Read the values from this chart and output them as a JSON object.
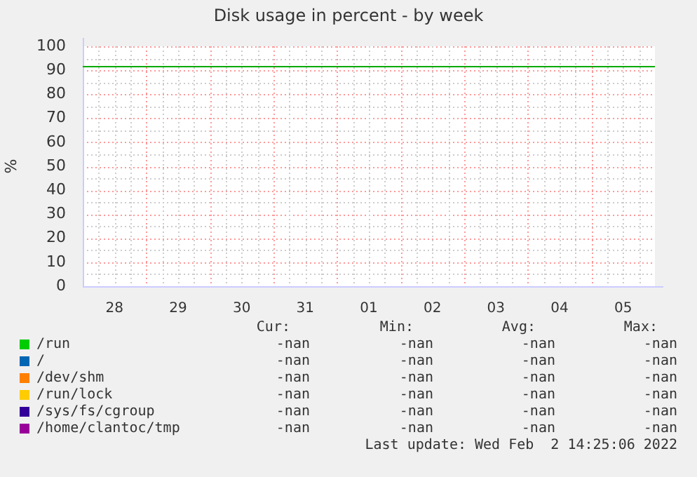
{
  "chart_data": {
    "type": "line",
    "title": "Disk usage in percent - by week",
    "ylabel": "%",
    "categories": [
      "28",
      "29",
      "30",
      "31",
      "01",
      "02",
      "03",
      "04",
      "05"
    ],
    "series": [
      {
        "name": "/run",
        "color": "#00cc00",
        "values": [
          null,
          null,
          null,
          null,
          null,
          null,
          null,
          null,
          null
        ]
      },
      {
        "name": "/",
        "color": "#0066b3",
        "values": [
          null,
          null,
          null,
          null,
          null,
          null,
          null,
          null,
          null
        ]
      },
      {
        "name": "/dev/shm",
        "color": "#ff8000",
        "values": [
          null,
          null,
          null,
          null,
          null,
          null,
          null,
          null,
          null
        ]
      },
      {
        "name": "/run/lock",
        "color": "#ffcc00",
        "values": [
          null,
          null,
          null,
          null,
          null,
          null,
          null,
          null,
          null
        ]
      },
      {
        "name": "/sys/fs/cgroup",
        "color": "#330099",
        "values": [
          null,
          null,
          null,
          null,
          null,
          null,
          null,
          null,
          null
        ]
      },
      {
        "name": "/home/clantoc/tmp",
        "color": "#990099",
        "values": [
          null,
          null,
          null,
          null,
          null,
          null,
          null,
          null,
          null
        ]
      }
    ],
    "ylim": [
      0,
      100
    ],
    "yticks": [
      0,
      10,
      20,
      30,
      40,
      50,
      60,
      70,
      80,
      90,
      100
    ],
    "ref_lines": [
      {
        "axis": "y",
        "value": 92,
        "color": "#00aa00"
      }
    ],
    "grid": true,
    "legend": "bottom",
    "annotations": [
      "Cur:",
      "Min:",
      "Avg:",
      "Max:",
      "-nan",
      "-nan",
      "-nan",
      "-nan",
      "-nan",
      "-nan",
      "-nan",
      "-nan",
      "-nan",
      "-nan",
      "-nan",
      "-nan",
      "-nan",
      "-nan",
      "-nan",
      "-nan",
      "-nan",
      "-nan",
      "-nan",
      "-nan",
      "-nan",
      "-nan",
      "-nan",
      "-nan",
      "Last update: Wed Feb  2 14:25:06 2022"
    ]
  }
}
